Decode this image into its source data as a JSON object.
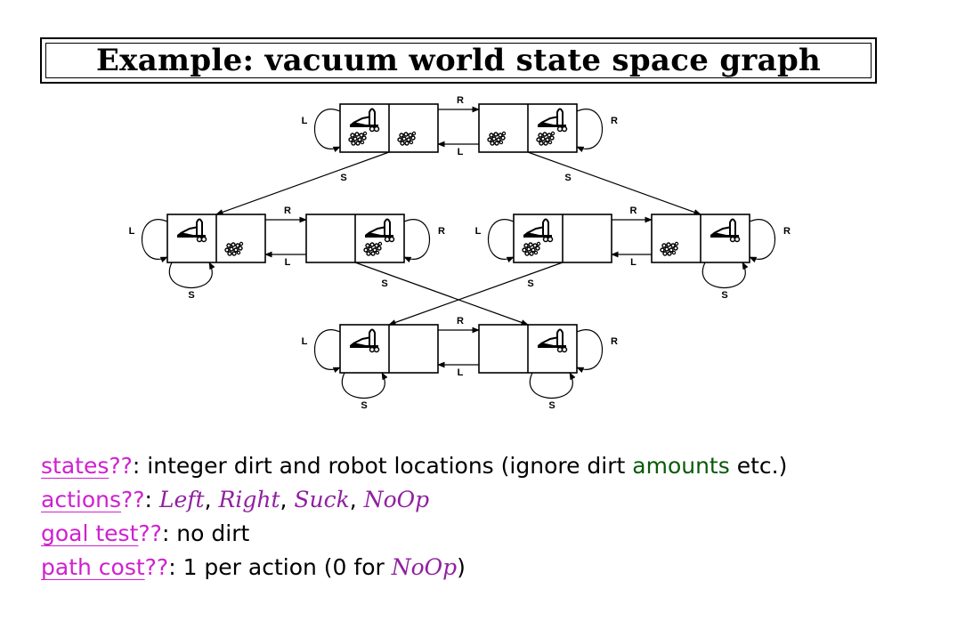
{
  "title": "Example: vacuum world state space graph",
  "graph": {
    "action_labels": {
      "left": "L",
      "right": "R",
      "suck": "S"
    },
    "states": [
      {
        "id": "s1",
        "robot": "left",
        "dirt_left": true,
        "dirt_right": true
      },
      {
        "id": "s2",
        "robot": "right",
        "dirt_left": true,
        "dirt_right": true
      },
      {
        "id": "s3",
        "robot": "left",
        "dirt_left": false,
        "dirt_right": true
      },
      {
        "id": "s4",
        "robot": "right",
        "dirt_left": false,
        "dirt_right": true
      },
      {
        "id": "s5",
        "robot": "left",
        "dirt_left": true,
        "dirt_right": false
      },
      {
        "id": "s6",
        "robot": "right",
        "dirt_left": true,
        "dirt_right": false
      },
      {
        "id": "s7",
        "robot": "left",
        "dirt_left": false,
        "dirt_right": false
      },
      {
        "id": "s8",
        "robot": "right",
        "dirt_left": false,
        "dirt_right": false
      }
    ],
    "transitions": [
      {
        "from": "s1",
        "to": "s2",
        "action": "R"
      },
      {
        "from": "s2",
        "to": "s1",
        "action": "L"
      },
      {
        "from": "s1",
        "to": "s1",
        "action": "L"
      },
      {
        "from": "s2",
        "to": "s2",
        "action": "R"
      },
      {
        "from": "s1",
        "to": "s3",
        "action": "S"
      },
      {
        "from": "s2",
        "to": "s6",
        "action": "S"
      },
      {
        "from": "s3",
        "to": "s4",
        "action": "R"
      },
      {
        "from": "s4",
        "to": "s3",
        "action": "L"
      },
      {
        "from": "s3",
        "to": "s3",
        "action": "L"
      },
      {
        "from": "s3",
        "to": "s3",
        "action": "S"
      },
      {
        "from": "s4",
        "to": "s4",
        "action": "R"
      },
      {
        "from": "s4",
        "to": "s8",
        "action": "S"
      },
      {
        "from": "s5",
        "to": "s6",
        "action": "R"
      },
      {
        "from": "s6",
        "to": "s5",
        "action": "L"
      },
      {
        "from": "s5",
        "to": "s5",
        "action": "L"
      },
      {
        "from": "s5",
        "to": "s7",
        "action": "S"
      },
      {
        "from": "s6",
        "to": "s6",
        "action": "R"
      },
      {
        "from": "s6",
        "to": "s6",
        "action": "S"
      },
      {
        "from": "s7",
        "to": "s8",
        "action": "R"
      },
      {
        "from": "s8",
        "to": "s7",
        "action": "L"
      },
      {
        "from": "s7",
        "to": "s7",
        "action": "L"
      },
      {
        "from": "s7",
        "to": "s7",
        "action": "S"
      },
      {
        "from": "s8",
        "to": "s8",
        "action": "R"
      },
      {
        "from": "s8",
        "to": "s8",
        "action": "S"
      }
    ]
  },
  "bullets": {
    "states": {
      "term": "states",
      "qq": "??",
      "text1": ": integer dirt and robot locations (ignore dirt ",
      "highlight": "amounts",
      "text2": " etc.)"
    },
    "actions": {
      "term": "actions",
      "qq": "??",
      "sep": ": ",
      "items": [
        "Left",
        "Right",
        "Suck",
        "NoOp"
      ],
      "comma": ", "
    },
    "goal_test": {
      "term": "goal test",
      "qq": "??",
      "text": ": no dirt"
    },
    "path_cost": {
      "term": "path cost",
      "qq": "??",
      "text1": ": 1 per action (0 for ",
      "math": "NoOp",
      "text2": ")"
    }
  },
  "colors": {
    "term": "#d020d0",
    "math": "#9020a0",
    "highlight": "#0a5a0a"
  }
}
